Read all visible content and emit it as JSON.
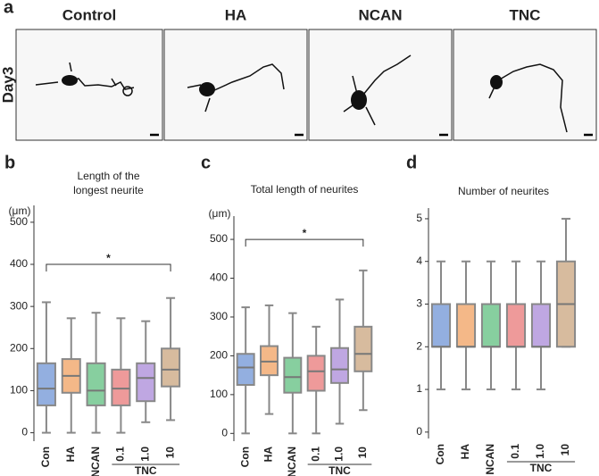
{
  "panel_a": {
    "label": "a",
    "row_label": "Day3",
    "conditions": [
      "Control",
      "HA",
      "NCAN",
      "TNC"
    ]
  },
  "chart_data": [
    {
      "type": "box",
      "panel": "b",
      "title": [
        "Length of the",
        "longest neurite"
      ],
      "y_unit": "(μm)",
      "categories": [
        "Con",
        "HA",
        "NCAN",
        "0.1",
        "1.0",
        "10"
      ],
      "colors": [
        "#6f94d6",
        "#f0a060",
        "#5fbf7f",
        "#e87878",
        "#a98ad8",
        "#c9a47e"
      ],
      "groups": [
        {
          "label": "TNC",
          "from": 3,
          "to": 5
        }
      ],
      "values": [
        [
          0,
          65,
          105,
          165,
          310
        ],
        [
          0,
          95,
          135,
          175,
          272
        ],
        [
          0,
          65,
          100,
          165,
          285
        ],
        [
          0,
          65,
          105,
          150,
          272
        ],
        [
          25,
          75,
          130,
          165,
          265
        ],
        [
          30,
          110,
          150,
          200,
          320
        ]
      ],
      "annotation": {
        "text": "*",
        "from": 0,
        "to": 5,
        "y": 400
      },
      "ylim": [
        -20,
        540
      ],
      "yticks": [
        0,
        100,
        200,
        300,
        400,
        500
      ]
    },
    {
      "type": "box",
      "panel": "c",
      "title": [
        "Total length of neurites"
      ],
      "y_unit": "(μm)",
      "categories": [
        "Con",
        "HA",
        "NCAN",
        "0.1",
        "1.0",
        "10"
      ],
      "colors": [
        "#6f94d6",
        "#f0a060",
        "#5fbf7f",
        "#e87878",
        "#a98ad8",
        "#c9a47e"
      ],
      "groups": [
        {
          "label": "TNC",
          "from": 3,
          "to": 5
        }
      ],
      "values": [
        [
          0,
          125,
          170,
          205,
          325
        ],
        [
          50,
          150,
          185,
          225,
          330
        ],
        [
          0,
          105,
          145,
          195,
          310
        ],
        [
          0,
          110,
          160,
          200,
          275
        ],
        [
          25,
          130,
          165,
          220,
          345
        ],
        [
          60,
          160,
          205,
          275,
          420
        ]
      ],
      "annotation": {
        "text": "*",
        "from": 0,
        "to": 5,
        "y": 500
      },
      "ylim": [
        -20,
        560
      ],
      "yticks": [
        0,
        100,
        200,
        300,
        400,
        500
      ]
    },
    {
      "type": "box",
      "panel": "d",
      "title": [
        "Number of neurites"
      ],
      "categories": [
        "Con",
        "HA",
        "NCAN",
        "0.1",
        "1.0",
        "10"
      ],
      "colors": [
        "#6f94d6",
        "#f0a060",
        "#5fbf7f",
        "#e87878",
        "#a98ad8",
        "#c9a47e"
      ],
      "groups": [
        {
          "label": "TNC",
          "from": 3,
          "to": 5
        }
      ],
      "values": [
        [
          1,
          2,
          2,
          3,
          4
        ],
        [
          1,
          2,
          2,
          3,
          4
        ],
        [
          1,
          2,
          2,
          3,
          4
        ],
        [
          1,
          2,
          2,
          3,
          4
        ],
        [
          1,
          2,
          2,
          3,
          4
        ],
        [
          2,
          2,
          3,
          4,
          5
        ]
      ],
      "ylim": [
        -0.15,
        5.25
      ],
      "yticks": [
        0,
        1,
        2,
        3,
        4,
        5
      ]
    }
  ]
}
